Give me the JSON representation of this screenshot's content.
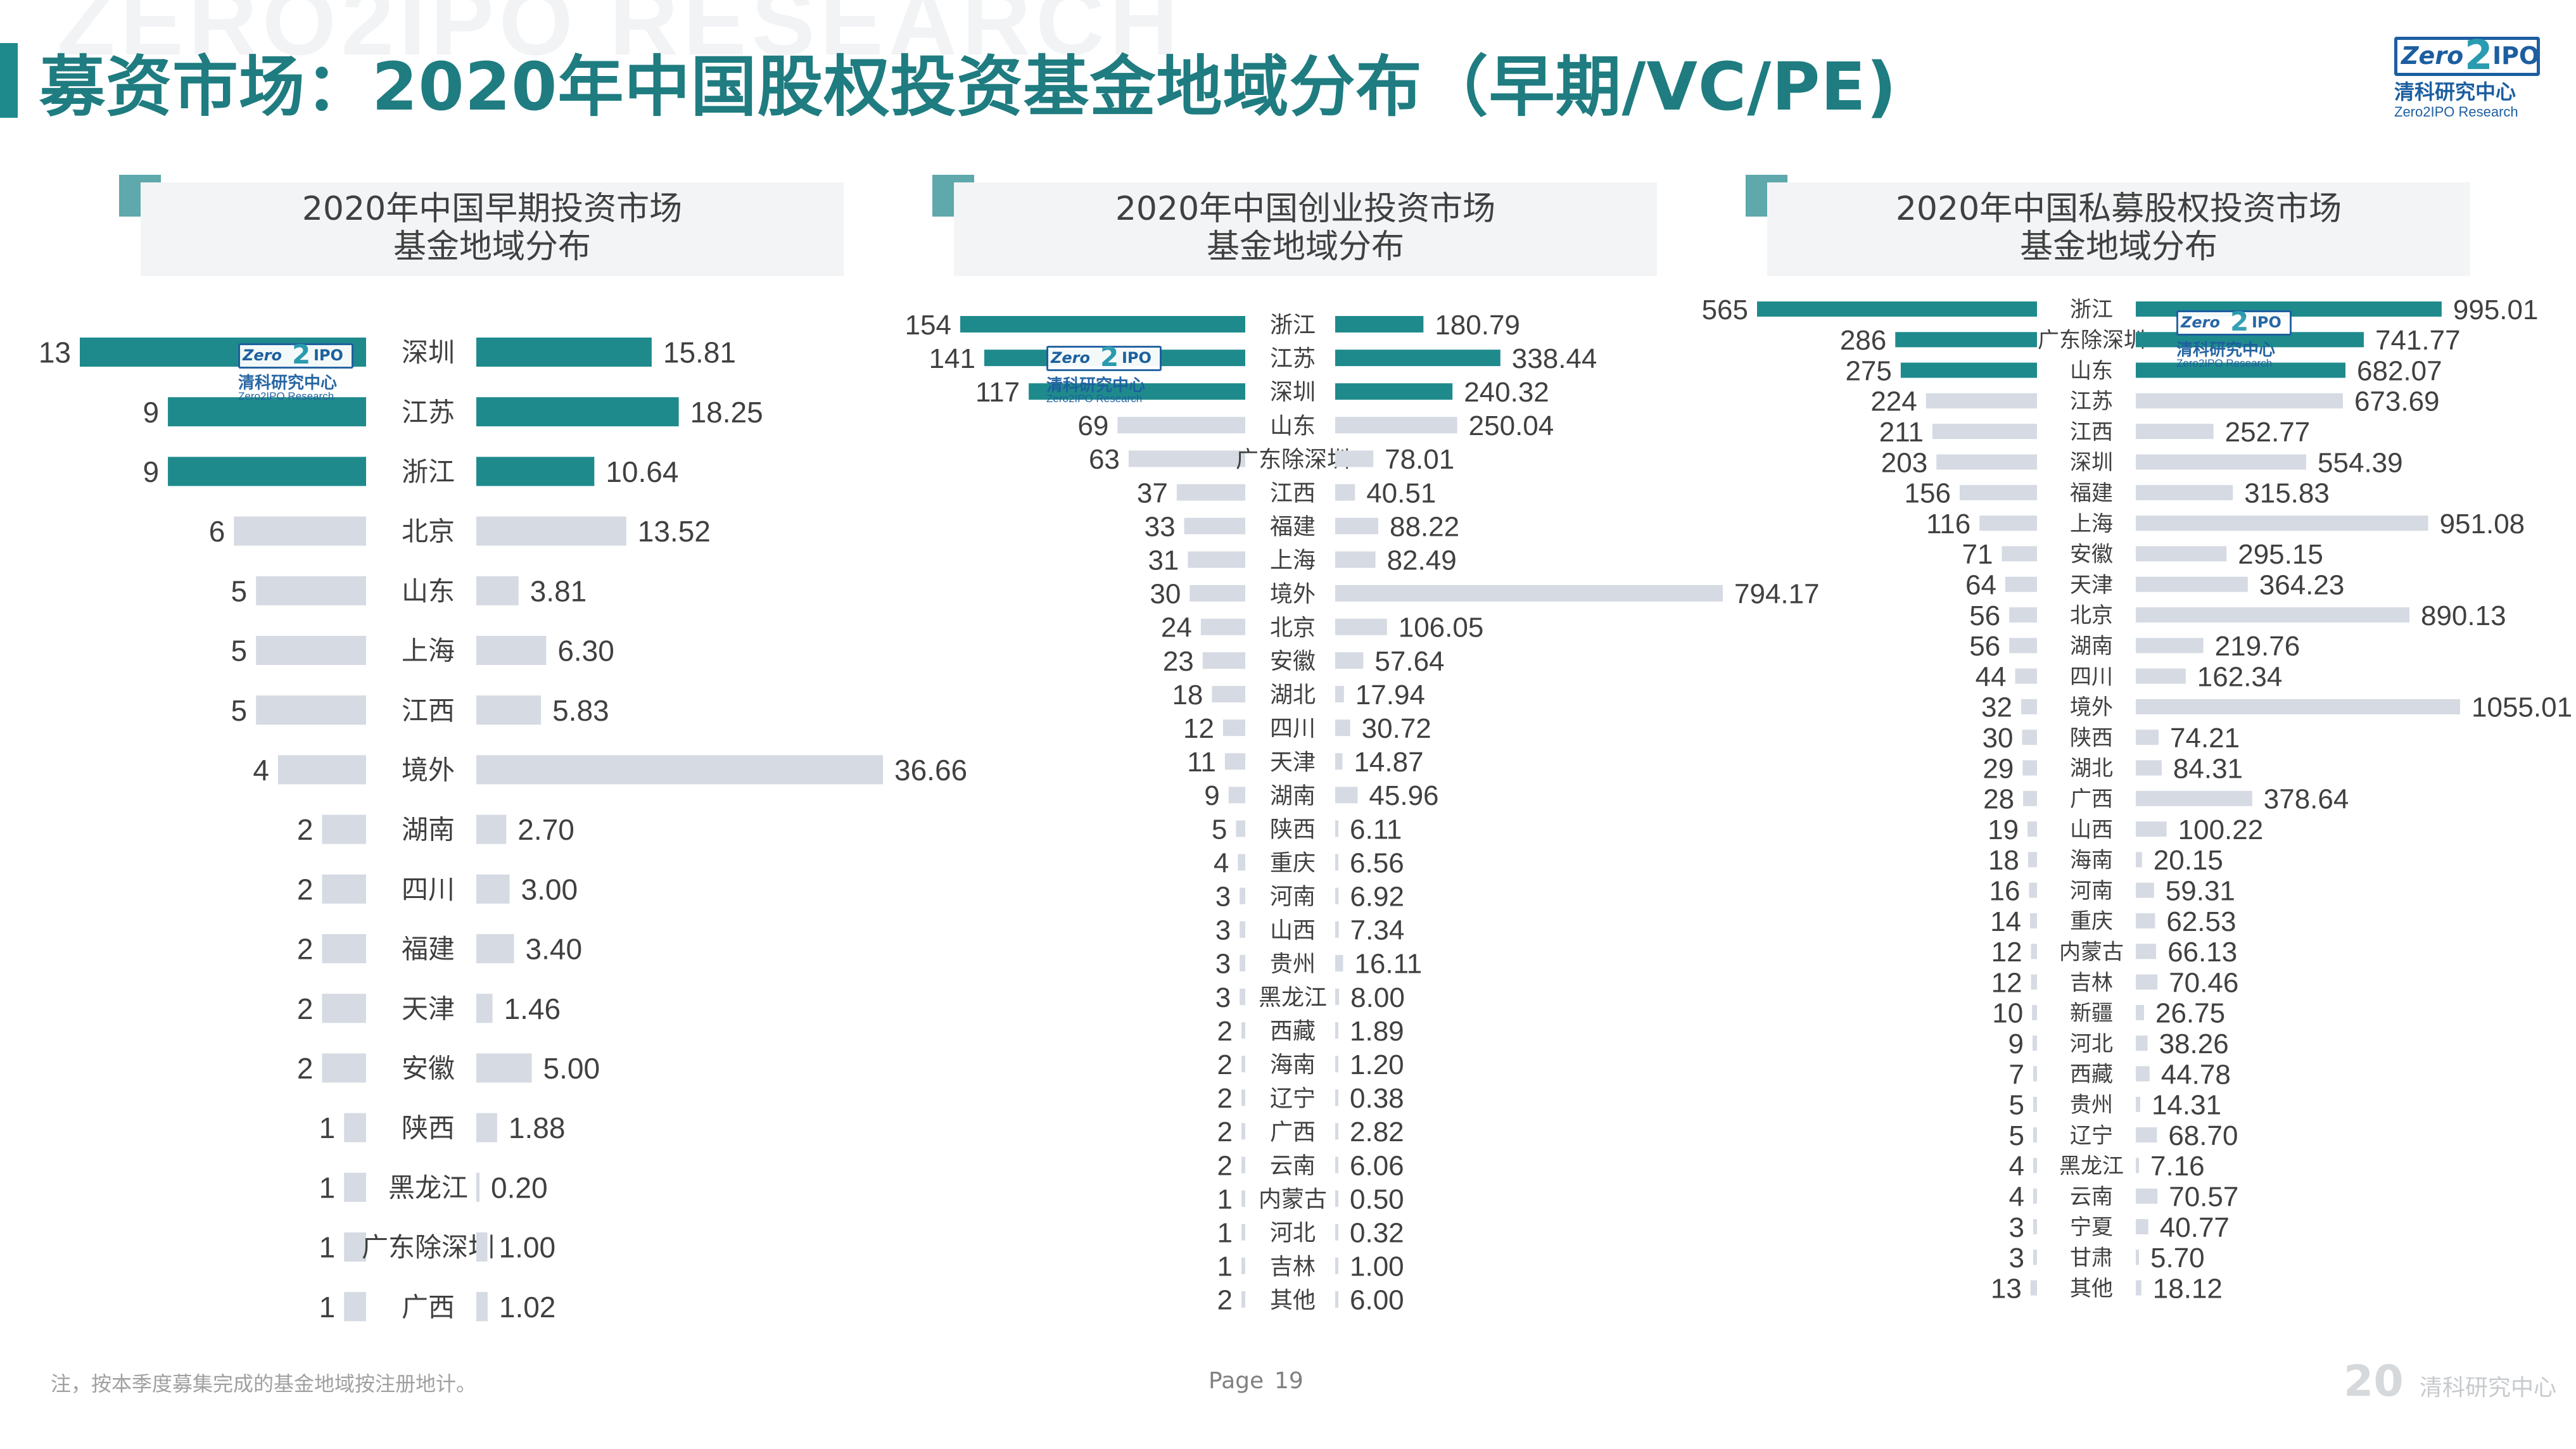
{
  "header": {
    "title": "募资市场：2020年中国股权投资基金地域分布（早期/VC/PE)",
    "watermark": "ZERO2IPO RESEARCH"
  },
  "logo": {
    "zero": "Zero",
    "two": "2",
    "ipo": "IPO",
    "cn": "清科研究中心",
    "en": "Zero2IPO Research"
  },
  "colors": {
    "accent": "#1f8a8c",
    "bar_highlight": "#1f8a8c",
    "bar_muted": "#d5dae3",
    "title": "#1f7c80"
  },
  "chart_data": [
    {
      "type": "bar",
      "title": "2020年中国早期投资市场\n基金地域分布",
      "categories": [
        "深圳",
        "江苏",
        "浙江",
        "北京",
        "山东",
        "上海",
        "江西",
        "境外",
        "湖南",
        "四川",
        "福建",
        "天津",
        "安徽",
        "陕西",
        "黑龙江",
        "广东除深圳",
        "广西"
      ],
      "series": [
        {
          "values": [
            13,
            9,
            9,
            6,
            5,
            5,
            5,
            4,
            2,
            2,
            2,
            2,
            2,
            1,
            1,
            1,
            1
          ],
          "labels": [
            "13",
            "9",
            "9",
            "6",
            "5",
            "5",
            "5",
            "4",
            "2",
            "2",
            "2",
            "2",
            "2",
            "1",
            "1",
            "1",
            "1"
          ]
        },
        {
          "values": [
            15.81,
            18.25,
            10.64,
            13.52,
            3.81,
            6.3,
            5.83,
            36.66,
            2.7,
            3.0,
            3.4,
            1.46,
            5.0,
            1.88,
            0.2,
            1.0,
            1.02
          ],
          "labels": [
            "15.81",
            "18.25",
            "10.64",
            "13.52",
            "3.81",
            "6.30",
            "5.83",
            "36.66",
            "2.70",
            "3.00",
            "3.40",
            "1.46",
            "5.00",
            "1.88",
            "0.20",
            "1.00",
            "1.02"
          ]
        }
      ],
      "highlight_count": 3
    },
    {
      "type": "bar",
      "title": "2020年中国创业投资市场\n基金地域分布",
      "categories": [
        "浙江",
        "江苏",
        "深圳",
        "山东",
        "广东除深圳",
        "江西",
        "福建",
        "上海",
        "境外",
        "北京",
        "安徽",
        "湖北",
        "四川",
        "天津",
        "湖南",
        "陕西",
        "重庆",
        "河南",
        "山西",
        "贵州",
        "黑龙江",
        "西藏",
        "海南",
        "辽宁",
        "广西",
        "云南",
        "内蒙古",
        "河北",
        "吉林",
        "其他"
      ],
      "series": [
        {
          "values": [
            154,
            141,
            117,
            69,
            63,
            37,
            33,
            31,
            30,
            24,
            23,
            18,
            12,
            11,
            9,
            5,
            4,
            3,
            3,
            3,
            3,
            2,
            2,
            2,
            2,
            2,
            1,
            1,
            1,
            2
          ],
          "labels": [
            "154",
            "141",
            "117",
            "69",
            "63",
            "37",
            "33",
            "31",
            "30",
            "24",
            "23",
            "18",
            "12",
            "11",
            "9",
            "5",
            "4",
            "3",
            "3",
            "3",
            "3",
            "2",
            "2",
            "2",
            "2",
            "2",
            "1",
            "1",
            "1",
            "2"
          ]
        },
        {
          "values": [
            180.79,
            338.44,
            240.32,
            250.04,
            78.01,
            40.51,
            88.22,
            82.49,
            794.17,
            106.05,
            57.64,
            17.94,
            30.72,
            14.87,
            45.96,
            6.11,
            6.56,
            6.92,
            7.34,
            16.11,
            8.0,
            1.89,
            1.2,
            0.38,
            2.82,
            6.06,
            0.5,
            0.32,
            1.0,
            6.0
          ],
          "labels": [
            "180.79",
            "338.44",
            "240.32",
            "250.04",
            "78.01",
            "40.51",
            "88.22",
            "82.49",
            "794.17",
            "106.05",
            "57.64",
            "17.94",
            "30.72",
            "14.87",
            "45.96",
            "6.11",
            "6.56",
            "6.92",
            "7.34",
            "16.11",
            "8.00",
            "1.89",
            "1.20",
            "0.38",
            "2.82",
            "6.06",
            "0.50",
            "0.32",
            "1.00",
            "6.00"
          ]
        }
      ],
      "highlight_count": 3
    },
    {
      "type": "bar",
      "title": "2020年中国私募股权投资市场\n基金地域分布",
      "categories": [
        "浙江",
        "广东除深圳",
        "山东",
        "江苏",
        "江西",
        "深圳",
        "福建",
        "上海",
        "安徽",
        "天津",
        "北京",
        "湖南",
        "四川",
        "境外",
        "陕西",
        "湖北",
        "广西",
        "山西",
        "海南",
        "河南",
        "重庆",
        "内蒙古",
        "吉林",
        "新疆",
        "河北",
        "西藏",
        "贵州",
        "辽宁",
        "黑龙江",
        "云南",
        "宁夏",
        "甘肃",
        "其他"
      ],
      "series": [
        {
          "values": [
            565,
            286,
            275,
            224,
            211,
            203,
            156,
            116,
            71,
            64,
            56,
            56,
            44,
            32,
            30,
            29,
            28,
            19,
            18,
            16,
            14,
            12,
            12,
            10,
            9,
            7,
            5,
            5,
            4,
            4,
            3,
            3,
            13
          ],
          "labels": [
            "565",
            "286",
            "275",
            "224",
            "211",
            "203",
            "156",
            "116",
            "71",
            "64",
            "56",
            "56",
            "44",
            "32",
            "30",
            "29",
            "28",
            "19",
            "18",
            "16",
            "14",
            "12",
            "12",
            "10",
            "9",
            "7",
            "5",
            "5",
            "4",
            "4",
            "3",
            "3",
            "13"
          ]
        },
        {
          "values": [
            995.01,
            741.77,
            682.07,
            673.69,
            252.77,
            554.39,
            315.83,
            951.08,
            295.15,
            364.23,
            890.13,
            219.76,
            162.34,
            1055.01,
            74.21,
            84.31,
            378.64,
            100.22,
            20.15,
            59.31,
            62.53,
            66.13,
            70.46,
            26.75,
            38.26,
            44.78,
            14.31,
            68.7,
            7.16,
            70.57,
            40.77,
            5.7,
            18.12
          ],
          "labels": [
            "995.01",
            "741.77",
            "682.07",
            "673.69",
            "252.77",
            "554.39",
            "315.83",
            "951.08",
            "295.15",
            "364.23",
            "890.13",
            "219.76",
            "162.34",
            "1055.01",
            "74.21",
            "84.31",
            "378.64",
            "100.22",
            "20.15",
            "59.31",
            "62.53",
            "66.13",
            "70.46",
            "26.75",
            "38.26",
            "44.78",
            "14.31",
            "68.70",
            "7.16",
            "70.57",
            "40.77",
            "5.70",
            "18.12"
          ]
        }
      ],
      "highlight_count": 3
    }
  ],
  "footer": {
    "note": "注，按本季度募集完成的基金地域按注册地计。",
    "page_label": "Page",
    "page_number": "19",
    "logo_cn": "清科研究中心",
    "logo_20": "20"
  }
}
